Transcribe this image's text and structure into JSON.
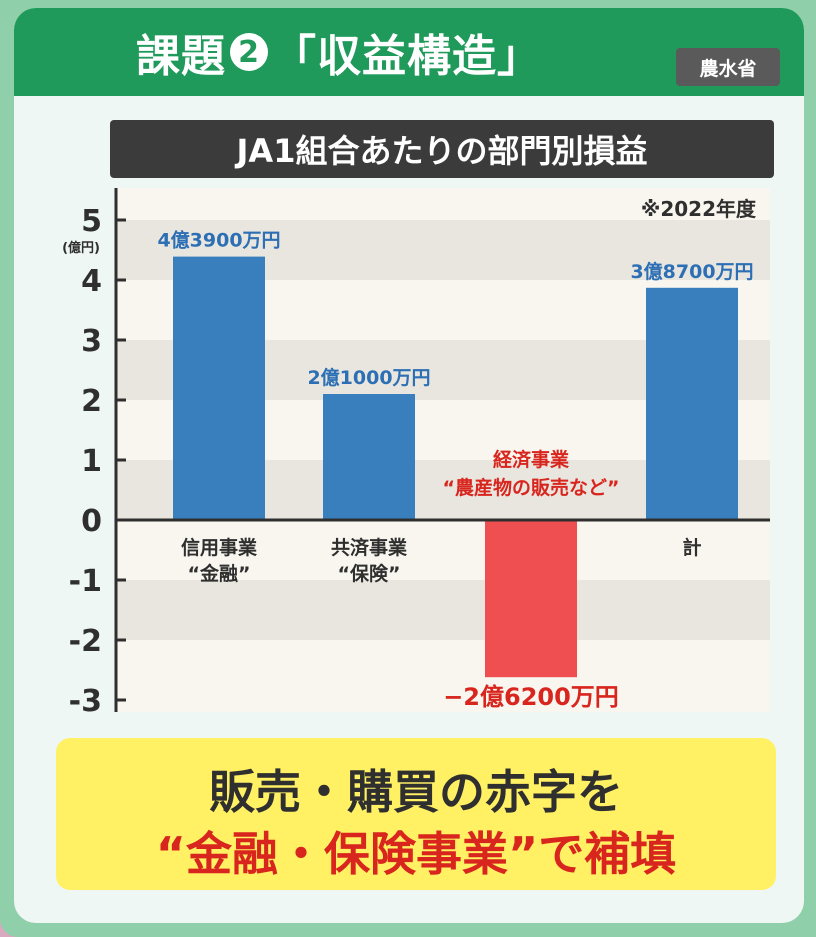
{
  "header": {
    "title_prefix": "課題",
    "issue_number": "2",
    "title_suffix": "「収益構造」",
    "source": "農水省"
  },
  "chart_title": "JA1組合あたりの部門別損益",
  "chart_data": {
    "type": "bar",
    "title": "JA1組合あたりの部門別損益",
    "note": "※2022年度",
    "ylabel": "(億円)",
    "ylim": [
      -3,
      5
    ],
    "yticks": [
      "5",
      "4",
      "3",
      "2",
      "1",
      "0",
      "-1",
      "-2",
      "-3"
    ],
    "grid": "alternating bands",
    "categories": [
      {
        "line1": "信用事業",
        "line2": "“金融”"
      },
      {
        "line1": "共済事業",
        "line2": "“保険”"
      },
      {
        "line1": "経済事業",
        "line2": "“農産物の販売など”"
      },
      {
        "line1": "計",
        "line2": ""
      }
    ],
    "values": [
      4.39,
      2.1,
      -2.62,
      3.87
    ],
    "value_labels": [
      "4億3900万円",
      "2億1000万円",
      "−2億6200万円",
      "3億8700万円"
    ],
    "colors": [
      "#3a7fbd",
      "#3a7fbd",
      "#ef4f50",
      "#3a7fbd"
    ],
    "label_colors": [
      "#2d6fb4",
      "#2d6fb4",
      "#d8261e",
      "#2d6fb4"
    ],
    "category_label_colors": [
      "#2f2f2f",
      "#2f2f2f",
      "#d8261e",
      "#2f2f2f"
    ]
  },
  "conclusion": {
    "line1": "販売・購買の赤字を",
    "line2": "“金融・保険事業”で補填"
  }
}
